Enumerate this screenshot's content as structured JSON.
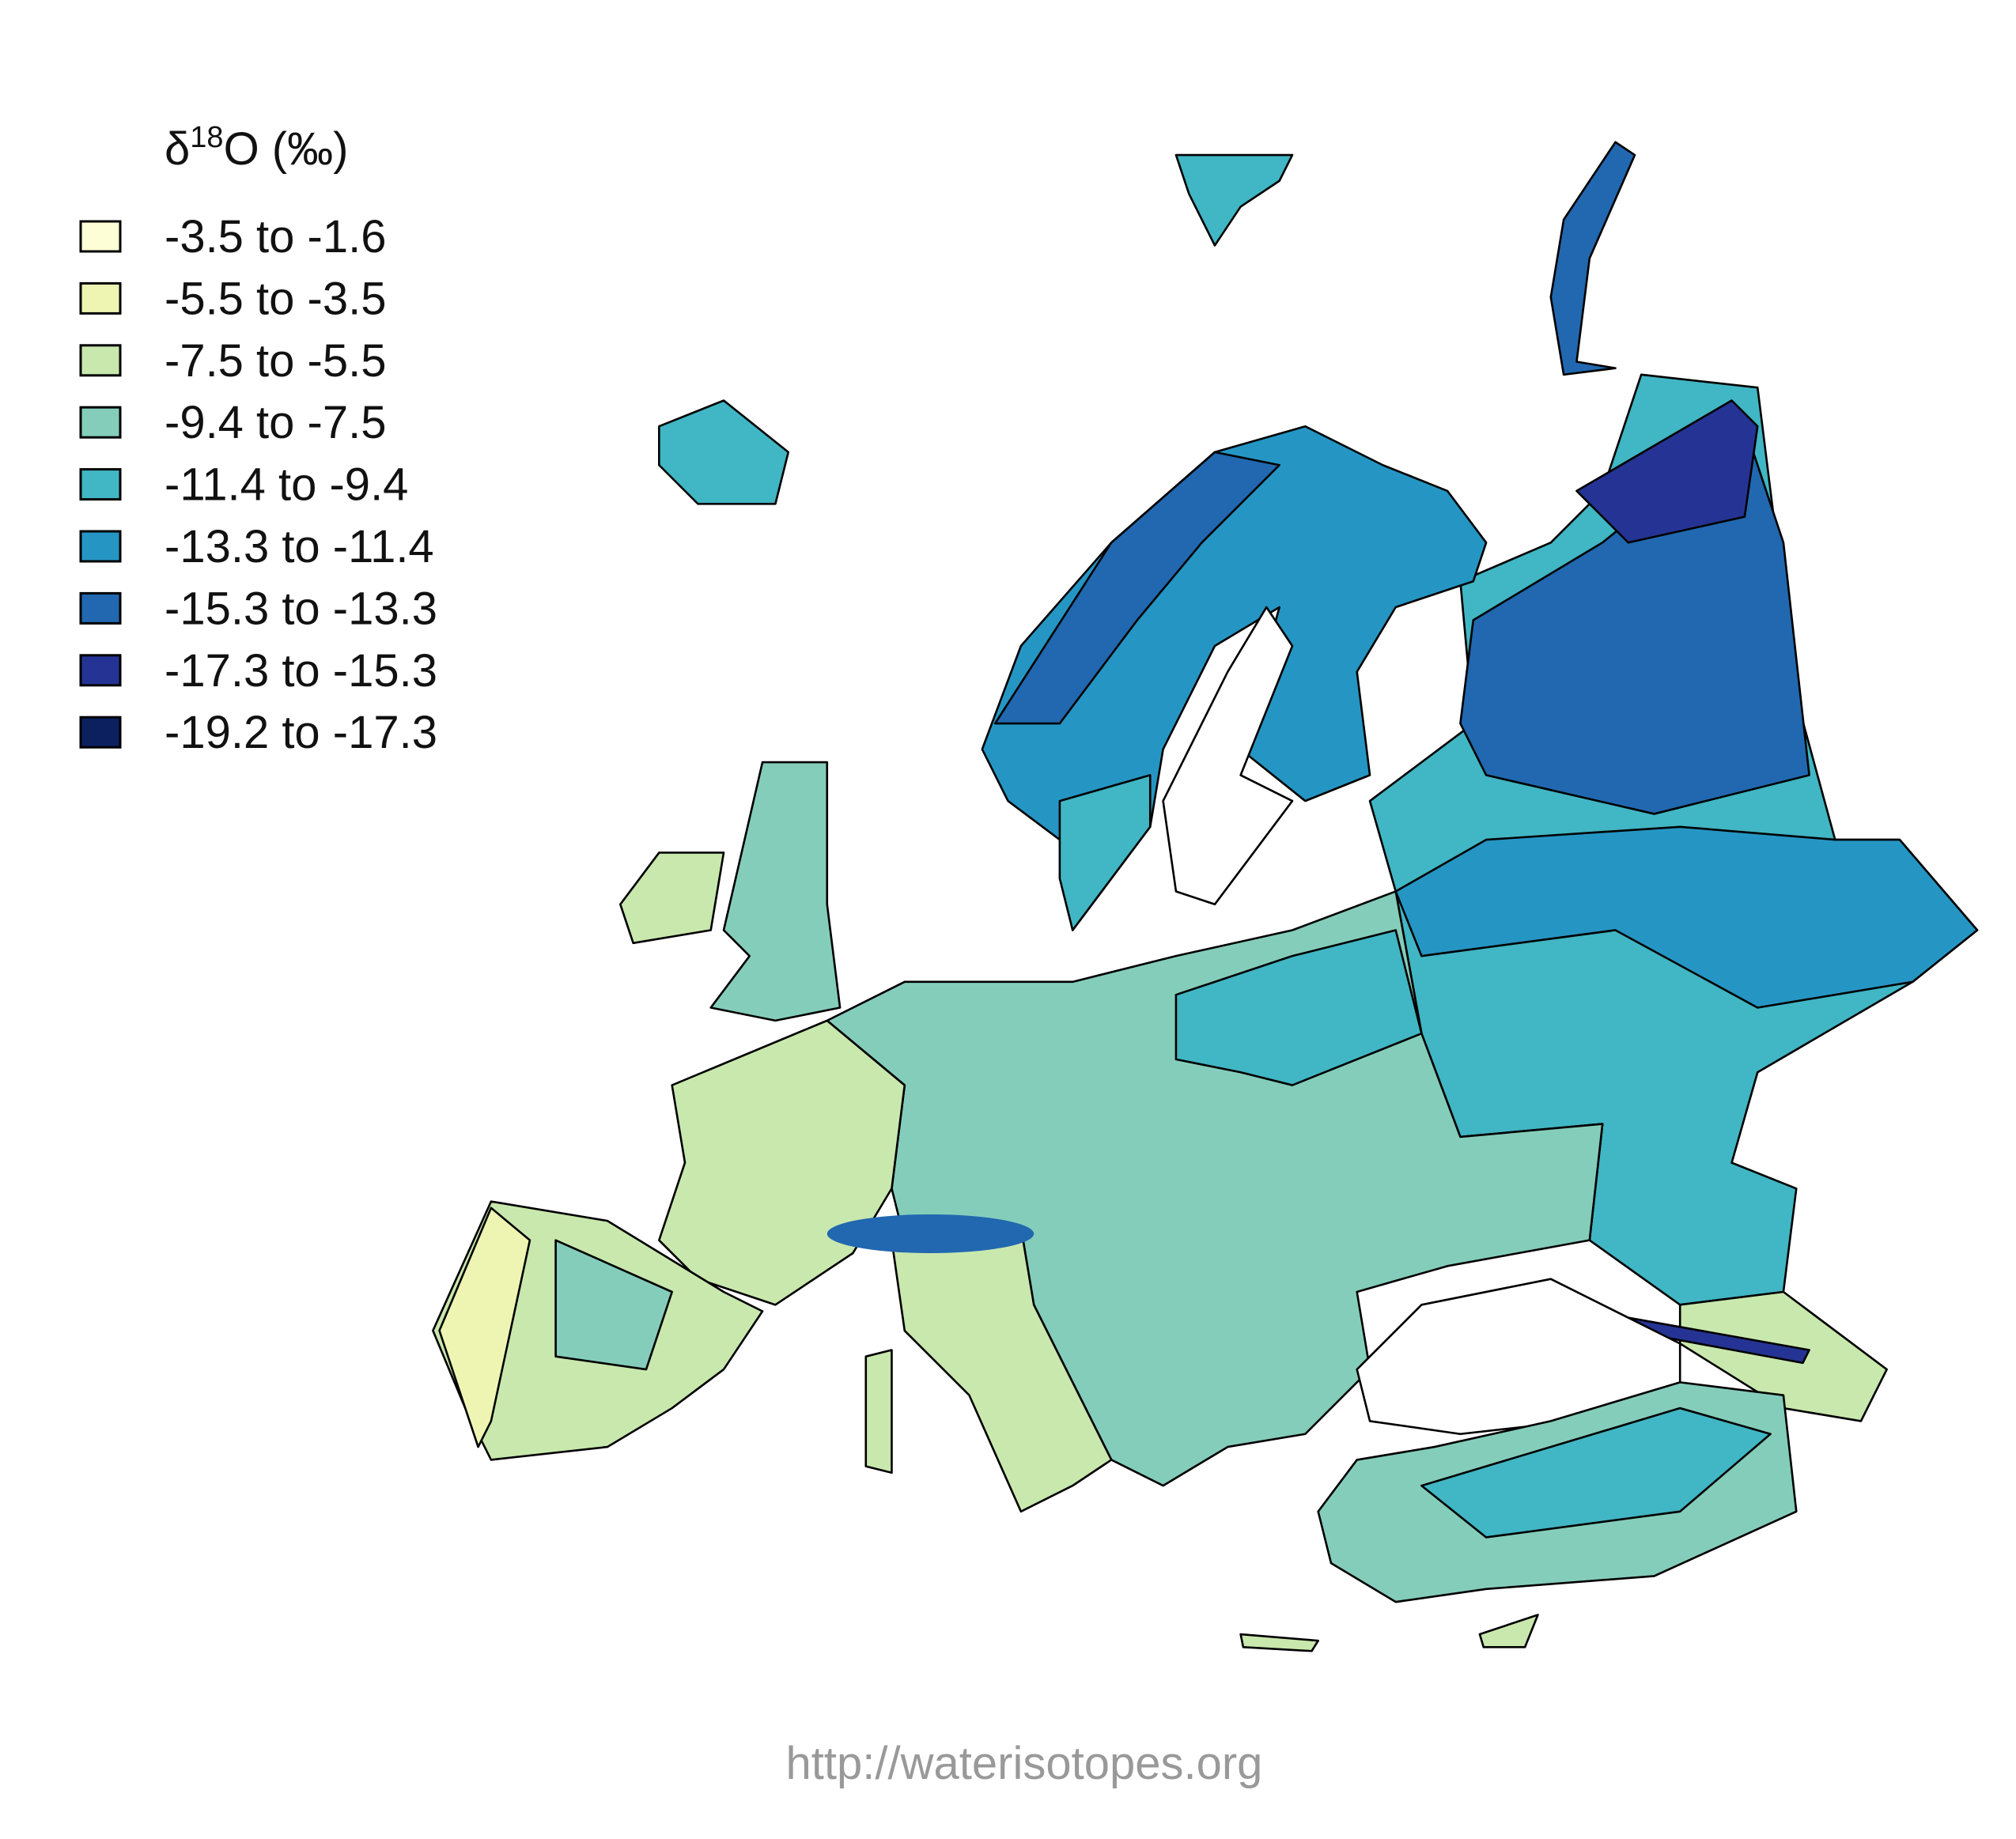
{
  "legend": {
    "title": {
      "symbol": "δ",
      "superscript": "18",
      "rest": "O (‰)"
    },
    "items": [
      {
        "label": "-3.5 to -1.6",
        "color": "#fdfdd6"
      },
      {
        "label": "-5.5 to -3.5",
        "color": "#eef5b2"
      },
      {
        "label": "-7.5 to -5.5",
        "color": "#c9e8ad"
      },
      {
        "label": "-9.4 to -7.5",
        "color": "#84cdbb"
      },
      {
        "label": "-11.4 to -9.4",
        "color": "#41b6c4"
      },
      {
        "label": "-13.3 to -11.4",
        "color": "#2596c4"
      },
      {
        "label": "-15.3 to -13.3",
        "color": "#2168b0"
      },
      {
        "label": "-17.3 to -15.3",
        "color": "#253494"
      },
      {
        "label": "-19.2 to -17.3",
        "color": "#0c2060"
      }
    ]
  },
  "footer": {
    "url": "http://waterisotopes.org"
  }
}
